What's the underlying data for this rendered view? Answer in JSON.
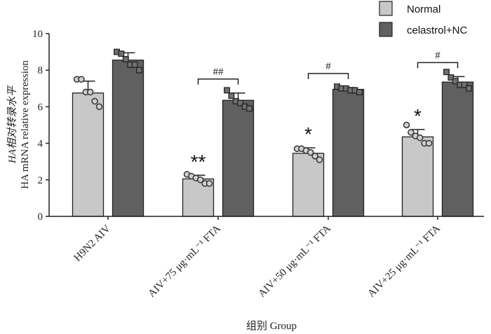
{
  "chart_data": {
    "type": "bar",
    "title": "",
    "ylabel_line1": "HA相对转录水平",
    "ylabel_line2": "HA mRNA relative expression",
    "xlabel": "组别 Group",
    "ylim": [
      0,
      10
    ],
    "yticks": [
      "0",
      "2",
      "4",
      "6",
      "8",
      "10"
    ],
    "categories": [
      "H9N2 AIV",
      "AIV+75 μg·mL⁻¹ FTA",
      "AIV+50 μg·mL⁻¹ FTA",
      "AIV+25 μg·mL⁻¹ FTA"
    ],
    "legend_position": "top-right",
    "series": [
      {
        "name": "Normal",
        "color": "#c8c8c8",
        "marker": "circle",
        "values": [
          6.75,
          2.05,
          3.45,
          4.35
        ],
        "error_upper": [
          7.4,
          2.25,
          3.75,
          4.75
        ],
        "points": [
          [
            7.5,
            7.5,
            6.8,
            6.8,
            6.3,
            6.0
          ],
          [
            2.3,
            2.2,
            2.1,
            2.0,
            1.8,
            1.8
          ],
          [
            3.7,
            3.7,
            3.6,
            3.5,
            3.3,
            3.1
          ],
          [
            5.0,
            4.6,
            4.4,
            4.3,
            4.0,
            4.0
          ]
        ]
      },
      {
        "name": "celastrol+NC",
        "color": "#606060",
        "marker": "square",
        "values": [
          8.55,
          6.35,
          6.95,
          7.35
        ],
        "error_upper": [
          8.95,
          6.75,
          7.05,
          7.65
        ],
        "points": [
          [
            9.0,
            8.9,
            8.6,
            8.3,
            8.3,
            8.0
          ],
          [
            6.9,
            6.6,
            6.3,
            6.2,
            6.0,
            5.9
          ],
          [
            7.1,
            7.0,
            7.0,
            6.9,
            6.9,
            6.8
          ],
          [
            7.9,
            7.6,
            7.4,
            7.2,
            7.2,
            7.0
          ]
        ]
      }
    ],
    "annotations": {
      "normal_stars": [
        "",
        "**",
        "*",
        "*"
      ],
      "bracket_labels": [
        "",
        "##",
        "#",
        "#"
      ]
    }
  }
}
